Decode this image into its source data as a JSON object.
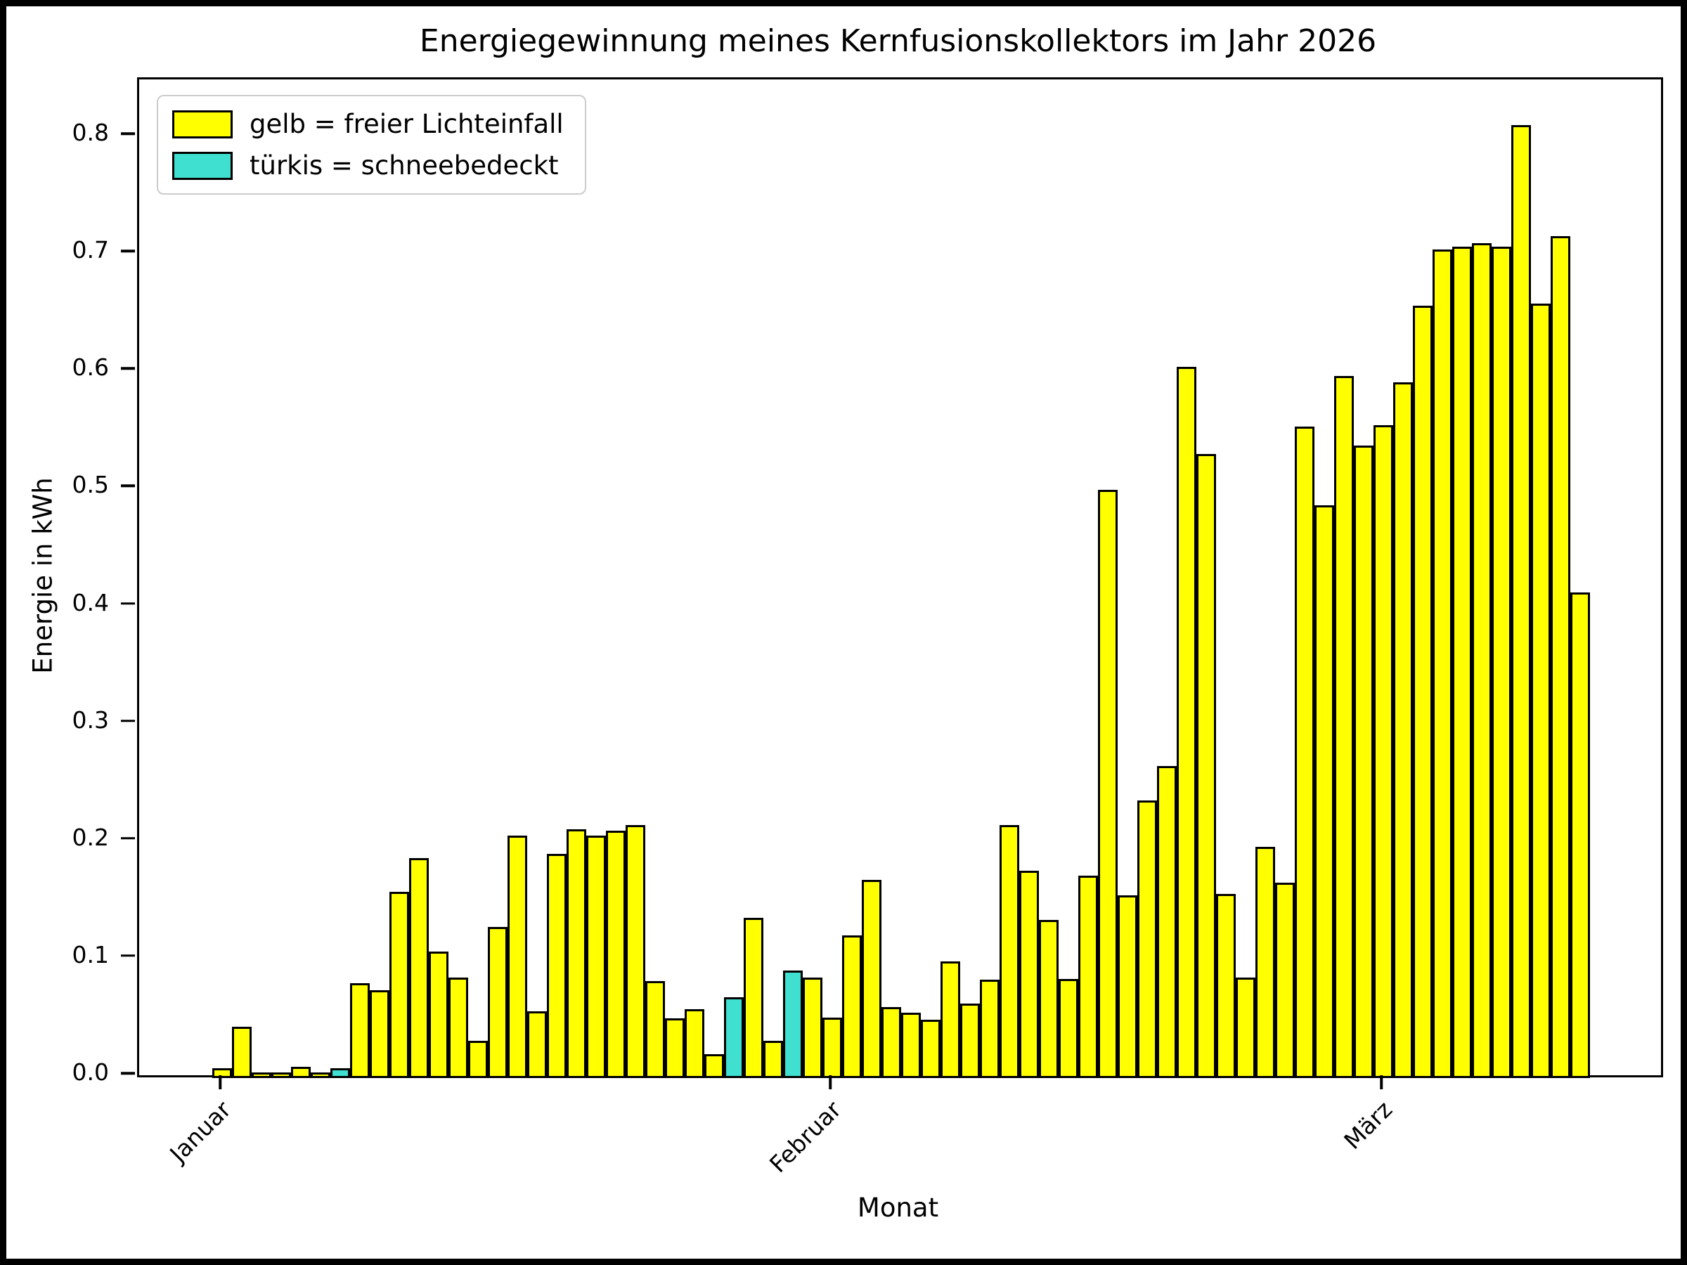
{
  "chart_data": {
    "type": "bar",
    "title": "Energiegewinnung meines Kernfusionskollektors im Jahr 2026",
    "xlabel": "Monat",
    "ylabel": "Energie in kWh",
    "ylim": [
      0,
      0.85
    ],
    "grid": false,
    "legend_position": "upper left",
    "yticks": [
      "0.0",
      "0.1",
      "0.2",
      "0.3",
      "0.4",
      "0.5",
      "0.6",
      "0.7",
      "0.8"
    ],
    "xticks": [
      {
        "label": "Januar",
        "day_index": 0
      },
      {
        "label": "Februar",
        "day_index": 31
      },
      {
        "label": "März",
        "day_index": 59
      }
    ],
    "legend": [
      {
        "label": "gelb = freier Lichteinfall",
        "color": "#ffff00"
      },
      {
        "label": "türkis = schneebedeckt",
        "color": "#40e0d0"
      }
    ],
    "colors": {
      "free_light": "#ffff00",
      "snow_covered": "#40e0d0",
      "bar_edge": "#000000"
    },
    "days": [
      {
        "date": "1. Januar",
        "kwh": 0.005,
        "snow": false
      },
      {
        "date": "2. Januar",
        "kwh": 0.04,
        "snow": false
      },
      {
        "date": "3. Januar",
        "kwh": 0.001,
        "snow": false
      },
      {
        "date": "4. Januar",
        "kwh": 0.001,
        "snow": false
      },
      {
        "date": "5. Januar",
        "kwh": 0.006,
        "snow": false
      },
      {
        "date": "6. Januar",
        "kwh": 0.001,
        "snow": false
      },
      {
        "date": "7. Januar",
        "kwh": 0.005,
        "snow": true
      },
      {
        "date": "8. Januar",
        "kwh": 0.077,
        "snow": false
      },
      {
        "date": "9. Januar",
        "kwh": 0.071,
        "snow": false
      },
      {
        "date": "10. Januar",
        "kwh": 0.155,
        "snow": false
      },
      {
        "date": "11. Januar",
        "kwh": 0.184,
        "snow": false
      },
      {
        "date": "12. Januar",
        "kwh": 0.104,
        "snow": false
      },
      {
        "date": "13. Januar",
        "kwh": 0.082,
        "snow": false
      },
      {
        "date": "14. Januar",
        "kwh": 0.028,
        "snow": false
      },
      {
        "date": "15. Januar",
        "kwh": 0.125,
        "snow": false
      },
      {
        "date": "16. Januar",
        "kwh": 0.203,
        "snow": false
      },
      {
        "date": "17. Januar",
        "kwh": 0.053,
        "snow": false
      },
      {
        "date": "18. Januar",
        "kwh": 0.187,
        "snow": false
      },
      {
        "date": "19. Januar",
        "kwh": 0.208,
        "snow": false
      },
      {
        "date": "20. Januar",
        "kwh": 0.203,
        "snow": false
      },
      {
        "date": "21. Januar",
        "kwh": 0.207,
        "snow": false
      },
      {
        "date": "22. Januar",
        "kwh": 0.212,
        "snow": false
      },
      {
        "date": "23. Januar",
        "kwh": 0.079,
        "snow": false
      },
      {
        "date": "24. Januar",
        "kwh": 0.047,
        "snow": false
      },
      {
        "date": "25. Januar",
        "kwh": 0.055,
        "snow": false
      },
      {
        "date": "26. Januar",
        "kwh": 0.017,
        "snow": false
      },
      {
        "date": "27. Januar",
        "kwh": 0.065,
        "snow": true
      },
      {
        "date": "28. Januar",
        "kwh": 0.133,
        "snow": false
      },
      {
        "date": "29. Januar",
        "kwh": 0.028,
        "snow": false
      },
      {
        "date": "30. Januar",
        "kwh": 0.088,
        "snow": true
      },
      {
        "date": "31. Januar",
        "kwh": 0.082,
        "snow": false
      },
      {
        "date": "1. Februar",
        "kwh": 0.048,
        "snow": false
      },
      {
        "date": "2. Februar",
        "kwh": 0.118,
        "snow": false
      },
      {
        "date": "3. Februar",
        "kwh": 0.165,
        "snow": false
      },
      {
        "date": "4. Februar",
        "kwh": 0.057,
        "snow": false
      },
      {
        "date": "5. Februar",
        "kwh": 0.052,
        "snow": false
      },
      {
        "date": "6. Februar",
        "kwh": 0.046,
        "snow": false
      },
      {
        "date": "7. Februar",
        "kwh": 0.096,
        "snow": false
      },
      {
        "date": "8. Februar",
        "kwh": 0.06,
        "snow": false
      },
      {
        "date": "9. Februar",
        "kwh": 0.08,
        "snow": false
      },
      {
        "date": "10. Februar",
        "kwh": 0.212,
        "snow": false
      },
      {
        "date": "11. Februar",
        "kwh": 0.173,
        "snow": false
      },
      {
        "date": "12. Februar",
        "kwh": 0.131,
        "snow": false
      },
      {
        "date": "13. Februar",
        "kwh": 0.081,
        "snow": false
      },
      {
        "date": "14. Februar",
        "kwh": 0.169,
        "snow": false
      },
      {
        "date": "15. Februar",
        "kwh": 0.497,
        "snow": false
      },
      {
        "date": "16. Februar",
        "kwh": 0.152,
        "snow": false
      },
      {
        "date": "17. Februar",
        "kwh": 0.233,
        "snow": false
      },
      {
        "date": "18. Februar",
        "kwh": 0.262,
        "snow": false
      },
      {
        "date": "19. Februar",
        "kwh": 0.602,
        "snow": false
      },
      {
        "date": "20. Februar",
        "kwh": 0.528,
        "snow": false
      },
      {
        "date": "21. Februar",
        "kwh": 0.153,
        "snow": false
      },
      {
        "date": "22. Februar",
        "kwh": 0.082,
        "snow": false
      },
      {
        "date": "23. Februar",
        "kwh": 0.193,
        "snow": false
      },
      {
        "date": "24. Februar",
        "kwh": 0.163,
        "snow": false
      },
      {
        "date": "25. Februar",
        "kwh": 0.551,
        "snow": false
      },
      {
        "date": "26. Februar",
        "kwh": 0.484,
        "snow": false
      },
      {
        "date": "27. Februar",
        "kwh": 0.594,
        "snow": false
      },
      {
        "date": "28. Februar",
        "kwh": 0.535,
        "snow": false
      },
      {
        "date": "1. März",
        "kwh": 0.552,
        "snow": false
      },
      {
        "date": "2. März",
        "kwh": 0.589,
        "snow": false
      },
      {
        "date": "3. März",
        "kwh": 0.654,
        "snow": false
      },
      {
        "date": "4. März",
        "kwh": 0.702,
        "snow": false
      },
      {
        "date": "5. März",
        "kwh": 0.704,
        "snow": false
      },
      {
        "date": "6. März",
        "kwh": 0.707,
        "snow": false
      },
      {
        "date": "7. März",
        "kwh": 0.704,
        "snow": false
      },
      {
        "date": "8. März",
        "kwh": 0.808,
        "snow": false
      },
      {
        "date": "9. März",
        "kwh": 0.656,
        "snow": false
      },
      {
        "date": "10. März",
        "kwh": 0.713,
        "snow": false
      },
      {
        "date": "11. März",
        "kwh": 0.41,
        "snow": false
      }
    ]
  }
}
